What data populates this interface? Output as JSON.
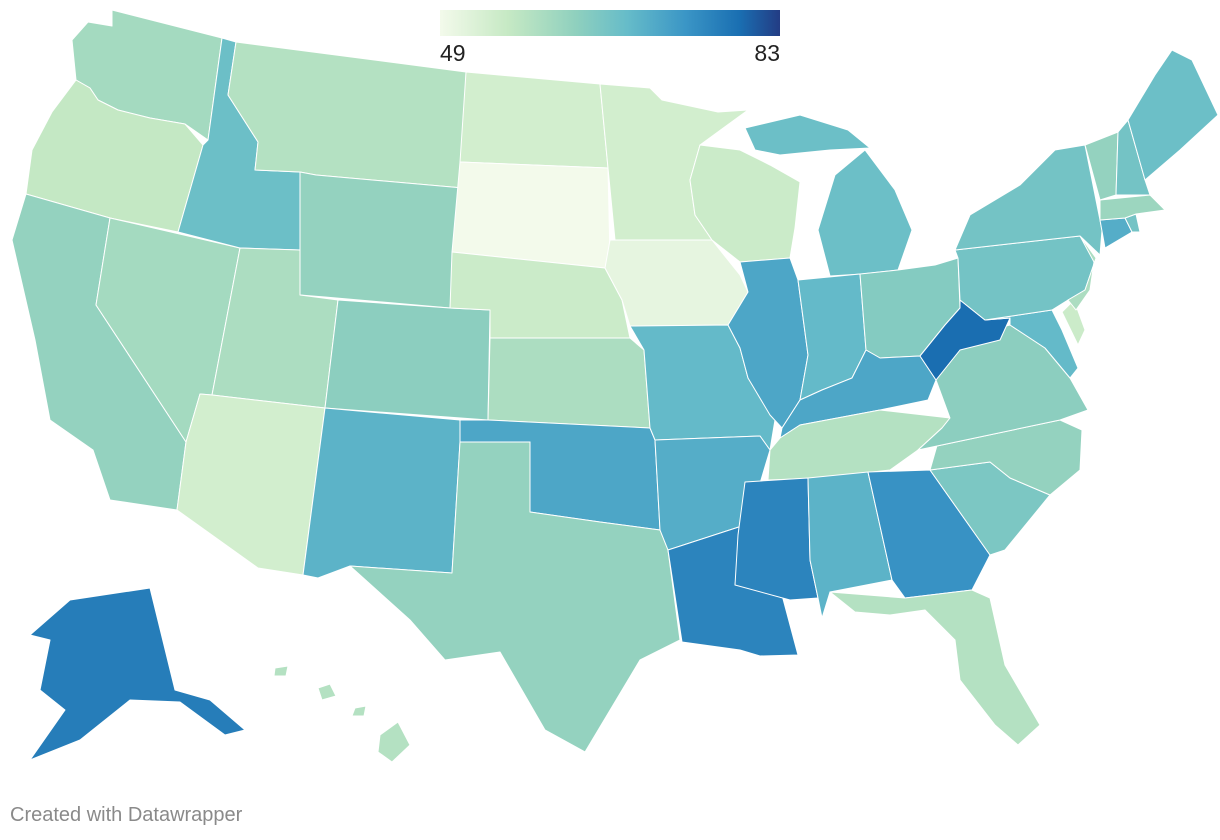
{
  "legend": {
    "min_label": "49",
    "max_label": "83",
    "min": 49,
    "max": 83,
    "color_stops": [
      "#f3faeb",
      "#c6e9c4",
      "#8fd0be",
      "#66bcc9",
      "#3b96c6",
      "#1a6fb2",
      "#233c84"
    ]
  },
  "footer": {
    "credit": "Created with Datawrapper"
  },
  "chart_data": {
    "type": "choropleth",
    "region": "United States",
    "scale": [
      49,
      83
    ],
    "states": [
      {
        "id": "WA",
        "value": 60
      },
      {
        "id": "OR",
        "value": 56
      },
      {
        "id": "CA",
        "value": 62
      },
      {
        "id": "NV",
        "value": 60
      },
      {
        "id": "ID",
        "value": 67
      },
      {
        "id": "MT",
        "value": 58
      },
      {
        "id": "WY",
        "value": 62
      },
      {
        "id": "UT",
        "value": 59
      },
      {
        "id": "AZ",
        "value": 54
      },
      {
        "id": "CO",
        "value": 63
      },
      {
        "id": "NM",
        "value": 69
      },
      {
        "id": "ND",
        "value": 54
      },
      {
        "id": "SD",
        "value": 49
      },
      {
        "id": "NE",
        "value": 55
      },
      {
        "id": "KS",
        "value": 59
      },
      {
        "id": "OK",
        "value": 71
      },
      {
        "id": "TX",
        "value": 62
      },
      {
        "id": "MN",
        "value": 54
      },
      {
        "id": "IA",
        "value": 51
      },
      {
        "id": "MO",
        "value": 68
      },
      {
        "id": "AR",
        "value": 70
      },
      {
        "id": "LA",
        "value": 76
      },
      {
        "id": "WI",
        "value": 55
      },
      {
        "id": "IL",
        "value": 71
      },
      {
        "id": "MI",
        "value": 67
      },
      {
        "id": "IN",
        "value": 68
      },
      {
        "id": "OH",
        "value": 64
      },
      {
        "id": "KY",
        "value": 71
      },
      {
        "id": "TN",
        "value": 58
      },
      {
        "id": "MS",
        "value": 76
      },
      {
        "id": "AL",
        "value": 69
      },
      {
        "id": "GA",
        "value": 74
      },
      {
        "id": "FL",
        "value": 58
      },
      {
        "id": "SC",
        "value": 65
      },
      {
        "id": "NC",
        "value": 62
      },
      {
        "id": "VA",
        "value": 63
      },
      {
        "id": "WV",
        "value": 79
      },
      {
        "id": "MD",
        "value": 68
      },
      {
        "id": "DE",
        "value": 55
      },
      {
        "id": "PA",
        "value": 66
      },
      {
        "id": "NJ",
        "value": 59
      },
      {
        "id": "NY",
        "value": 66
      },
      {
        "id": "CT",
        "value": 70
      },
      {
        "id": "RI",
        "value": 66
      },
      {
        "id": "MA",
        "value": 61
      },
      {
        "id": "VT",
        "value": 62
      },
      {
        "id": "NH",
        "value": 66
      },
      {
        "id": "ME",
        "value": 67
      },
      {
        "id": "AK",
        "value": 77
      },
      {
        "id": "HI",
        "value": 58
      }
    ]
  }
}
